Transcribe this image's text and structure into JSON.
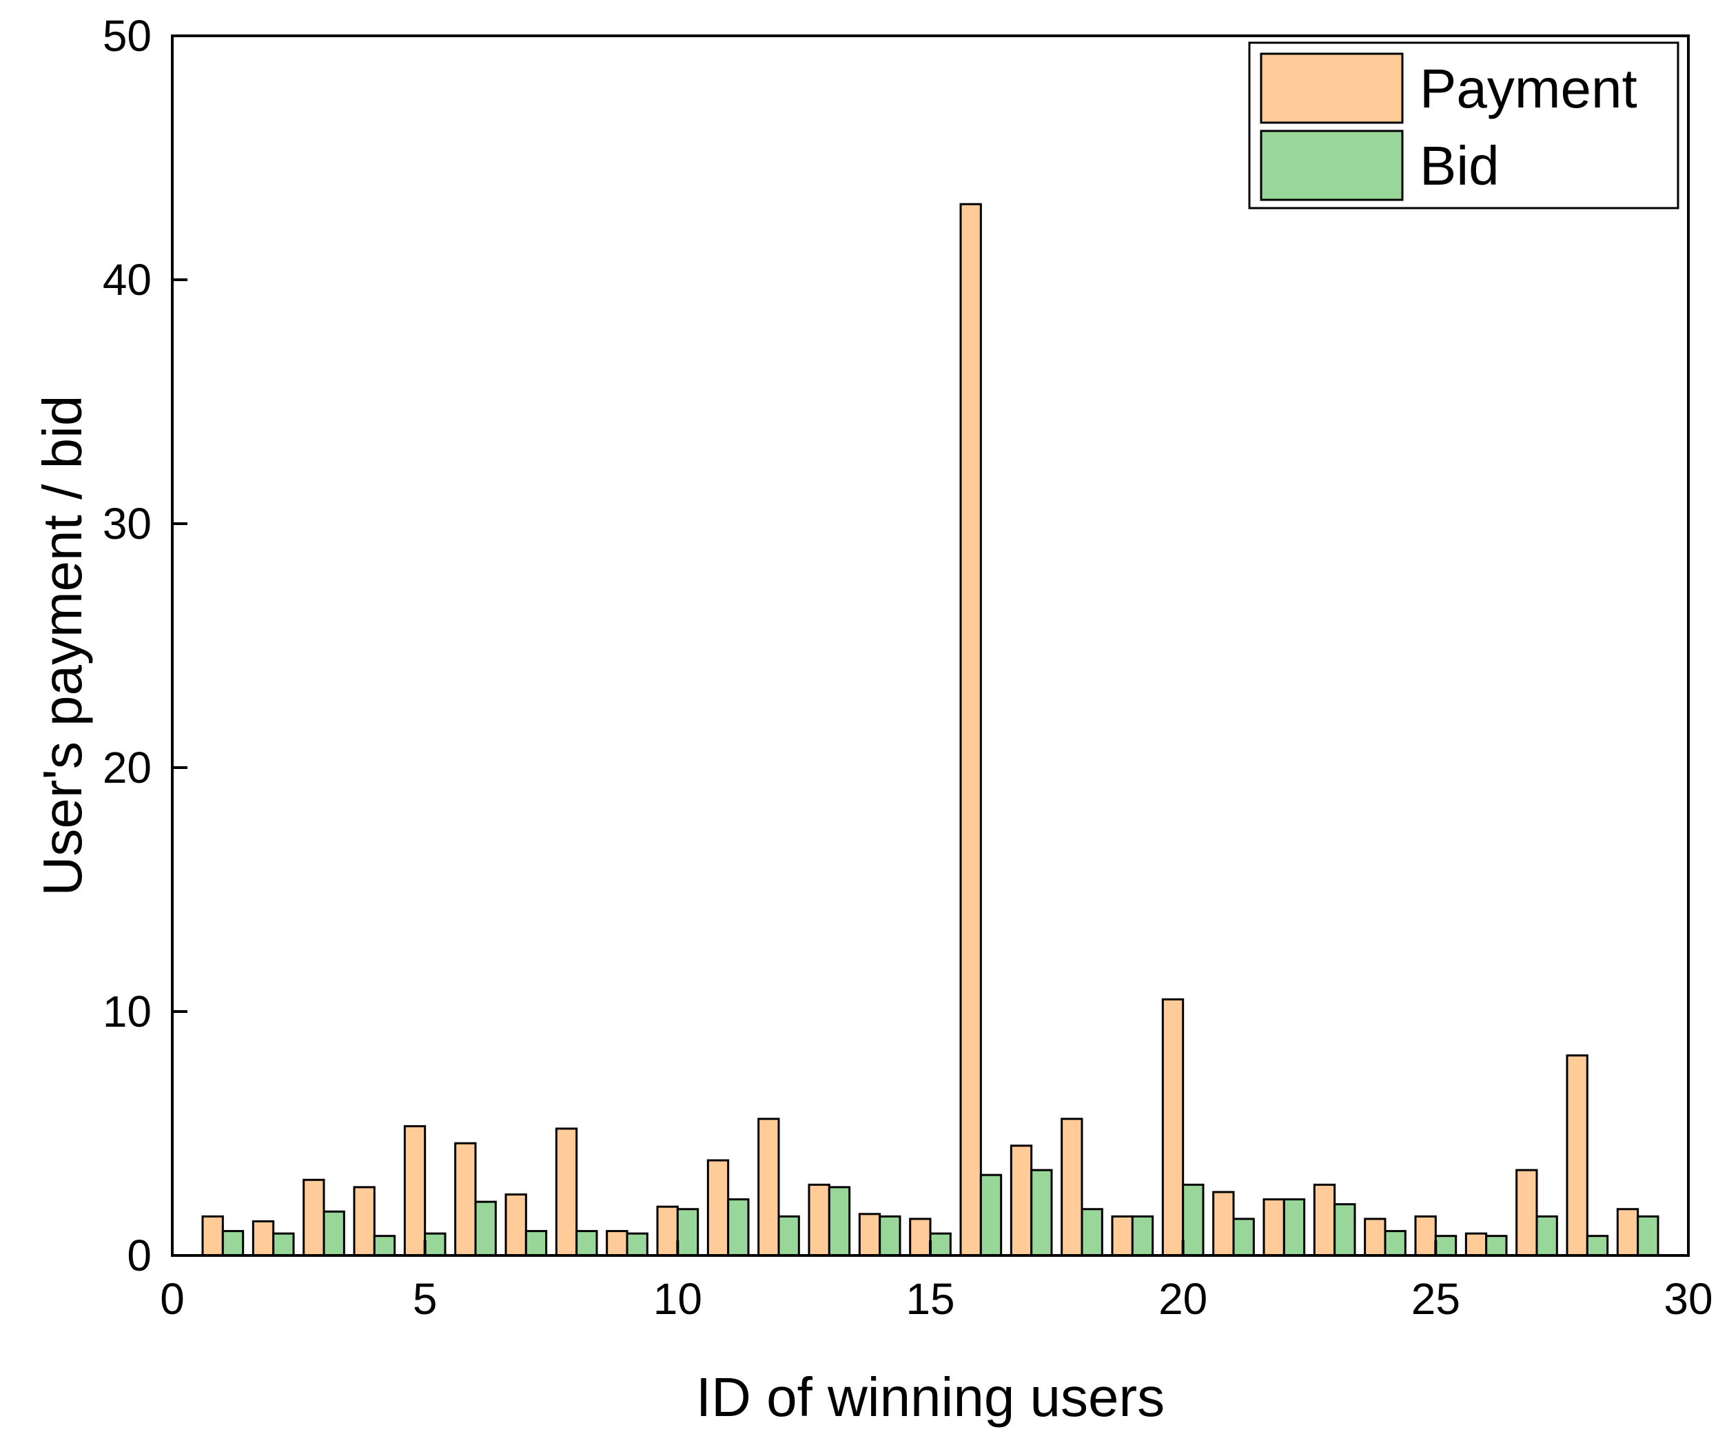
{
  "chart_data": {
    "type": "bar",
    "xlabel": "ID of winning users",
    "ylabel": "User's payment / bid",
    "xlim": [
      0,
      30
    ],
    "ylim": [
      0,
      50
    ],
    "x_ticks": [
      "0",
      "5",
      "10",
      "15",
      "20",
      "25",
      "30"
    ],
    "y_ticks": [
      "0",
      "10",
      "20",
      "30",
      "40",
      "50"
    ],
    "grid": false,
    "legend_position": "top-right",
    "categories": [
      1,
      2,
      3,
      4,
      5,
      6,
      7,
      8,
      9,
      10,
      11,
      12,
      13,
      14,
      15,
      16,
      17,
      18,
      19,
      20,
      21,
      22,
      23,
      24,
      25,
      26,
      27,
      28,
      29
    ],
    "series": [
      {
        "name": "Payment",
        "color": "#ffcc99",
        "values": [
          1.6,
          1.4,
          3.1,
          2.8,
          5.3,
          4.6,
          2.5,
          5.2,
          1.0,
          2.0,
          3.9,
          5.6,
          2.9,
          1.7,
          1.5,
          43.1,
          4.5,
          5.6,
          1.6,
          10.5,
          2.6,
          2.3,
          2.9,
          1.5,
          1.6,
          0.9,
          3.5,
          8.2,
          1.9
        ]
      },
      {
        "name": "Bid",
        "color": "#99d69a",
        "values": [
          1.0,
          0.9,
          1.8,
          0.8,
          0.9,
          2.2,
          1.0,
          1.0,
          0.9,
          1.9,
          2.3,
          1.6,
          2.8,
          1.6,
          0.9,
          3.3,
          3.5,
          1.9,
          1.6,
          2.9,
          1.5,
          2.3,
          2.1,
          1.0,
          0.8,
          0.8,
          1.6,
          0.8,
          1.6
        ]
      }
    ]
  }
}
